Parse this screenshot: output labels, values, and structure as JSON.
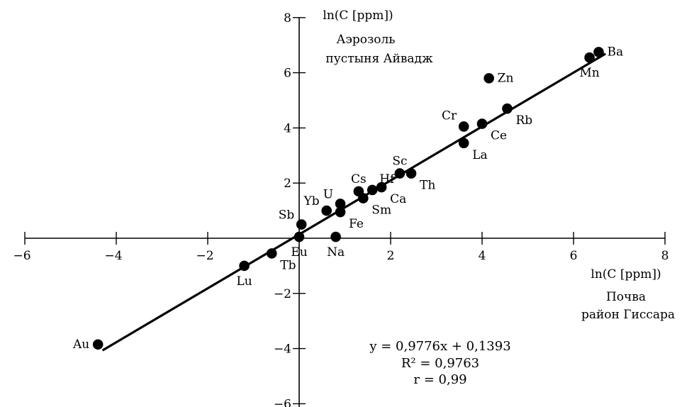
{
  "chart_data": {
    "type": "scatter",
    "x_axis": {
      "range": [
        -6,
        8
      ],
      "ticks": [
        -6,
        -4,
        -2,
        2,
        4,
        6,
        8
      ],
      "tick_labels": [
        "−6",
        "−4",
        "−2",
        "2",
        "4",
        "6",
        "8"
      ],
      "title_lines": [
        "ln(C [ppm])",
        "Почва",
        "район Гиссара"
      ]
    },
    "y_axis": {
      "range": [
        -6,
        8
      ],
      "ticks": [
        -6,
        -4,
        -2,
        2,
        4,
        6,
        8
      ],
      "tick_labels": [
        "−6",
        "−4",
        "−2",
        "2",
        "4",
        "6",
        "8"
      ],
      "title_lines": [
        "ln(C [ppm])",
        "Аэрозоль",
        "пустыня Айвадж"
      ]
    },
    "points": [
      {
        "label": "Au",
        "x": -4.4,
        "y": -3.85,
        "label_pos": "left"
      },
      {
        "label": "Lu",
        "x": -1.2,
        "y": -1.0,
        "label_pos": "below"
      },
      {
        "label": "Tb",
        "x": -0.6,
        "y": -0.55,
        "label_pos": "below-right"
      },
      {
        "label": "Eu",
        "x": 0.0,
        "y": 0.05,
        "label_pos": "below"
      },
      {
        "label": "Sb",
        "x": 0.05,
        "y": 0.5,
        "label_pos": "upper-left"
      },
      {
        "label": "Na",
        "x": 0.8,
        "y": 0.05,
        "label_pos": "below"
      },
      {
        "label": "Yb",
        "x": 0.6,
        "y": 1.0,
        "label_pos": "upper-left"
      },
      {
        "label": "U",
        "x": 0.9,
        "y": 1.25,
        "label_pos": "upper-left"
      },
      {
        "label": "Fe",
        "x": 0.9,
        "y": 0.95,
        "label_pos": "below-right"
      },
      {
        "label": "Cs",
        "x": 1.3,
        "y": 1.7,
        "label_pos": "above"
      },
      {
        "label": "Sm",
        "x": 1.4,
        "y": 1.45,
        "label_pos": "below-right"
      },
      {
        "label": "Hf",
        "x": 1.6,
        "y": 1.75,
        "label_pos": "above-right"
      },
      {
        "label": "Ca",
        "x": 1.8,
        "y": 1.85,
        "label_pos": "below-right"
      },
      {
        "label": "Sc",
        "x": 2.2,
        "y": 2.35,
        "label_pos": "above"
      },
      {
        "label": "Th",
        "x": 2.45,
        "y": 2.35,
        "label_pos": "below-right"
      },
      {
        "label": "La",
        "x": 3.6,
        "y": 3.45,
        "label_pos": "below-right"
      },
      {
        "label": "Cr",
        "x": 3.6,
        "y": 4.05,
        "label_pos": "above-left"
      },
      {
        "label": "Ce",
        "x": 4.0,
        "y": 4.15,
        "label_pos": "below-right"
      },
      {
        "label": "Zn",
        "x": 4.15,
        "y": 5.8,
        "label_pos": "right"
      },
      {
        "label": "Rb",
        "x": 4.55,
        "y": 4.7,
        "label_pos": "below-right"
      },
      {
        "label": "Mn",
        "x": 6.35,
        "y": 6.55,
        "label_pos": "below"
      },
      {
        "label": "Ba",
        "x": 6.55,
        "y": 6.75,
        "label_pos": "right"
      }
    ],
    "fit_line": {
      "slope": 0.9776,
      "intercept": 0.1393,
      "x_range": [
        -4.3,
        6.7
      ]
    },
    "annotation": {
      "equation": "y = 0,9776x + 0,1393",
      "r_squared": "R² = 0,9763",
      "r": "r = 0,99"
    },
    "grid": false
  }
}
